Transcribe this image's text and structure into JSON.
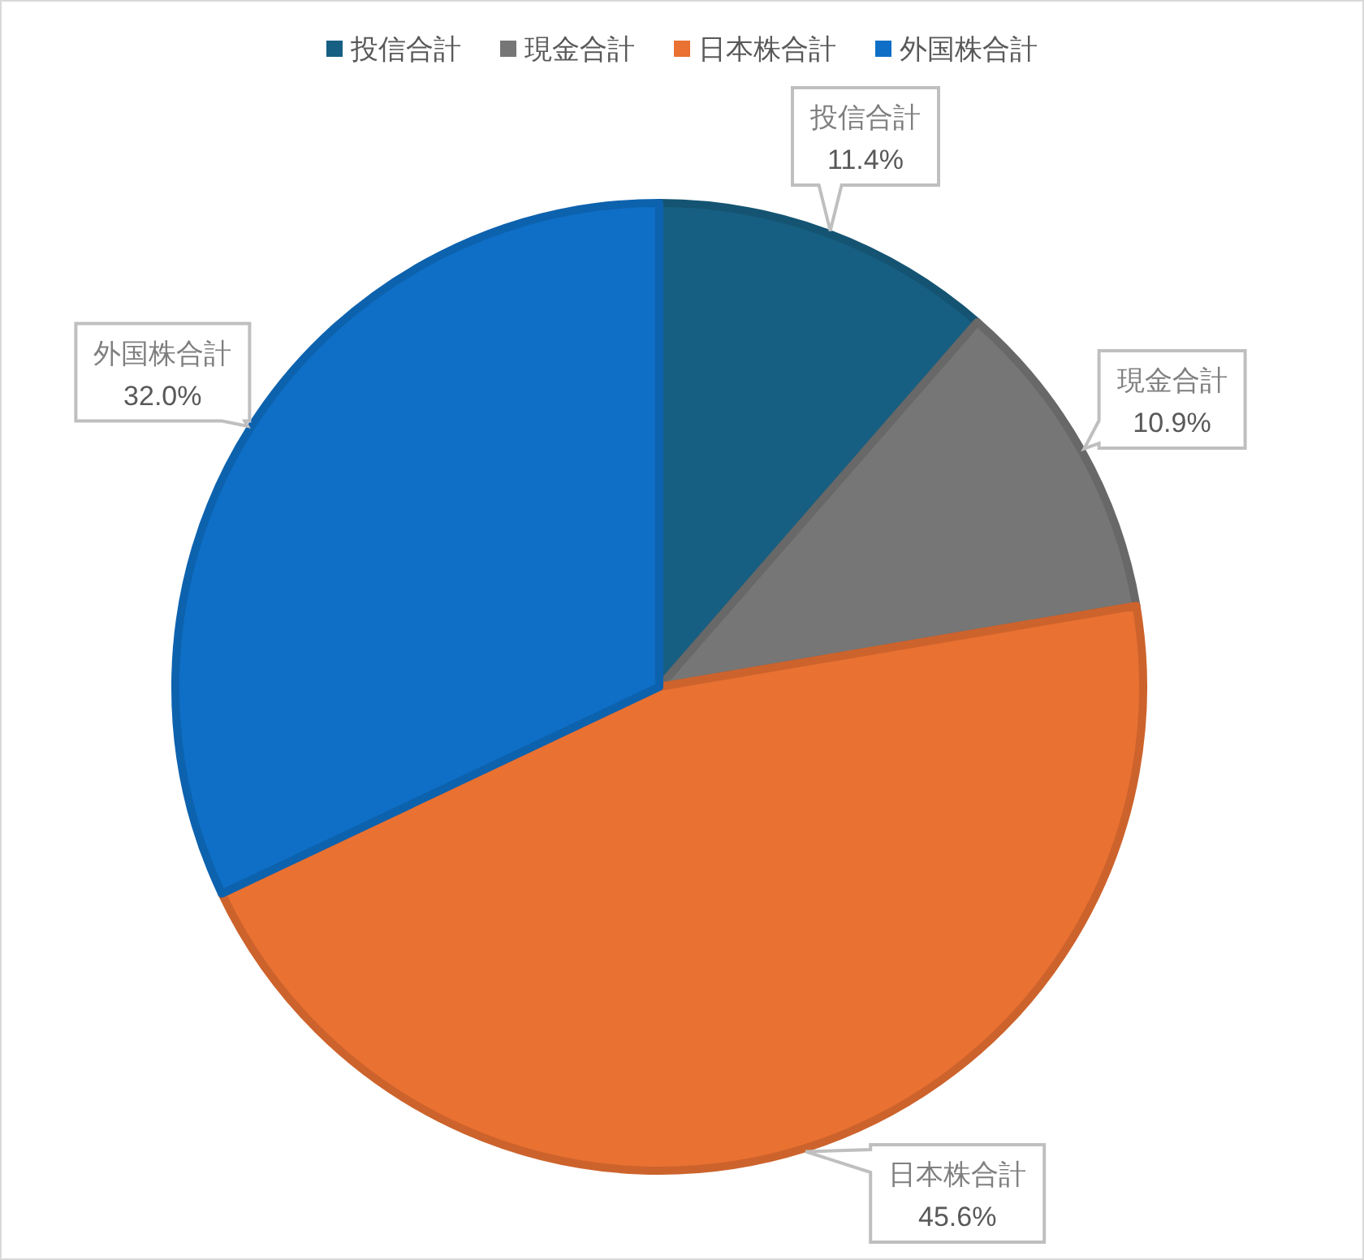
{
  "chart_data": {
    "type": "pie",
    "categories": [
      "投信合計",
      "現金合計",
      "日本株合計",
      "外国株合計"
    ],
    "values": [
      11.4,
      10.9,
      45.6,
      32.0
    ],
    "colors": [
      "#175f82",
      "#767676",
      "#e97132",
      "#0f6fc6"
    ],
    "value_labels": [
      "11.4%",
      "10.9%",
      "45.6%",
      "32.0%"
    ],
    "legend": "top"
  }
}
